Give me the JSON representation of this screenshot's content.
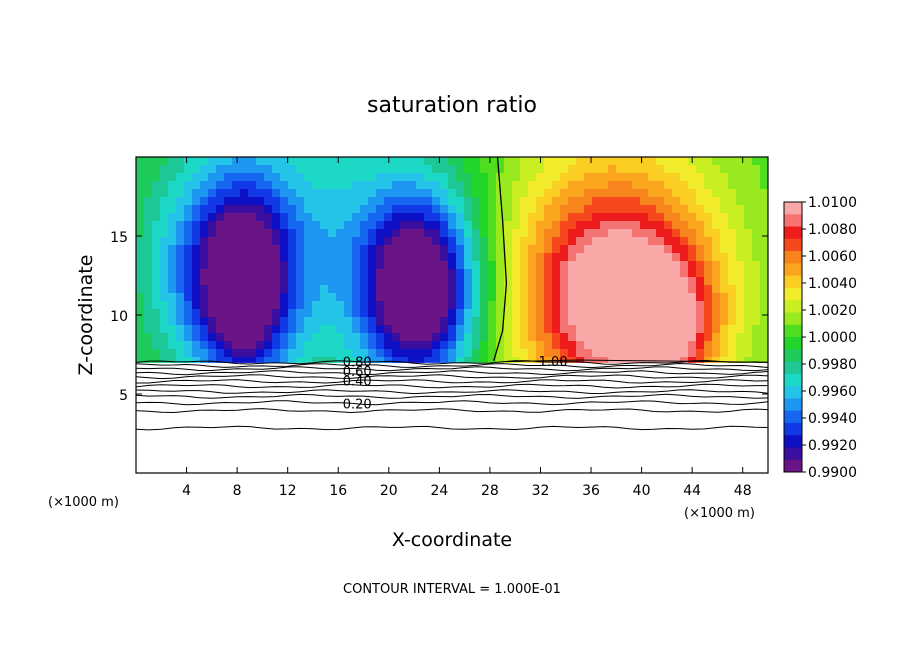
{
  "chart_data": {
    "type": "heatmap",
    "title": "saturation ratio",
    "xlabel": "X-coordinate",
    "ylabel": "Z-coordinate",
    "x_unit_left": "(×1000 m)",
    "x_unit_right": "(×1000 m)",
    "xlim": [
      0,
      50
    ],
    "ylim": [
      0,
      20
    ],
    "x_ticks": [
      4,
      8,
      12,
      16,
      20,
      24,
      28,
      32,
      36,
      40,
      44,
      48
    ],
    "y_ticks": [
      5,
      10,
      15
    ],
    "footer": "CONTOUR INTERVAL = 1.000E-01",
    "colorbar": {
      "min": 0.99,
      "max": 1.01,
      "labels": [
        "1.0100",
        "1.0080",
        "1.0060",
        "1.0040",
        "1.0020",
        "1.0000",
        "0.9980",
        "0.9960",
        "0.9940",
        "0.9920",
        "0.9900"
      ],
      "colors": [
        "#f9a7a7",
        "#f67373",
        "#ee1c1c",
        "#f7471c",
        "#f7841c",
        "#fba51e",
        "#fbce24",
        "#f3ec2c",
        "#c9ef22",
        "#98ea1f",
        "#4ede1f",
        "#22d52a",
        "#1ecb5a",
        "#1dc896",
        "#1dd8c6",
        "#23c4e8",
        "#1e97f0",
        "#1666f0",
        "#1139e6",
        "#0d10c4",
        "#3a0fa0",
        "#6a1488"
      ]
    },
    "contour_labels": [
      {
        "text": "1.00",
        "x": 33,
        "z": 7.1
      },
      {
        "text": "0.80",
        "x": 17.5,
        "z": 7.05
      },
      {
        "text": "0.60",
        "x": 17.5,
        "z": 6.45
      },
      {
        "text": "0.40",
        "x": 17.5,
        "z": 5.85
      },
      {
        "text": "0.20",
        "x": 17.5,
        "z": 4.4
      }
    ],
    "contour_levels_below": [
      7.0,
      6.8,
      6.6,
      6.35,
      6.1,
      5.8,
      5.5,
      5.15,
      4.85,
      4.45,
      3.95,
      2.85
    ],
    "cloud_base_z": 7.0,
    "field_blobs": [
      {
        "x": 8.5,
        "z": 11.5,
        "rx": 3.6,
        "rz": 6,
        "v": -0.0095
      },
      {
        "x": 22.5,
        "z": 11.5,
        "rx": 4.2,
        "rz": 5.6,
        "v": -0.011
      },
      {
        "x": 7.5,
        "z": 15,
        "rx": 6.5,
        "rz": 8,
        "v": -0.0035
      },
      {
        "x": 18,
        "z": 14,
        "rx": 9,
        "rz": 9,
        "v": -0.0035
      },
      {
        "x": 3.5,
        "z": 12,
        "rx": 3.5,
        "rz": 6,
        "v": -0.002
      },
      {
        "x": 38.5,
        "z": 10.5,
        "rx": 7.2,
        "rz": 6.2,
        "v": 0.0085
      },
      {
        "x": 42.5,
        "z": 9.0,
        "rx": 3.0,
        "rz": 3.5,
        "v": 0.004
      },
      {
        "x": 37.5,
        "z": 14,
        "rx": 9.5,
        "rz": 10,
        "v": 0.0045
      }
    ]
  }
}
